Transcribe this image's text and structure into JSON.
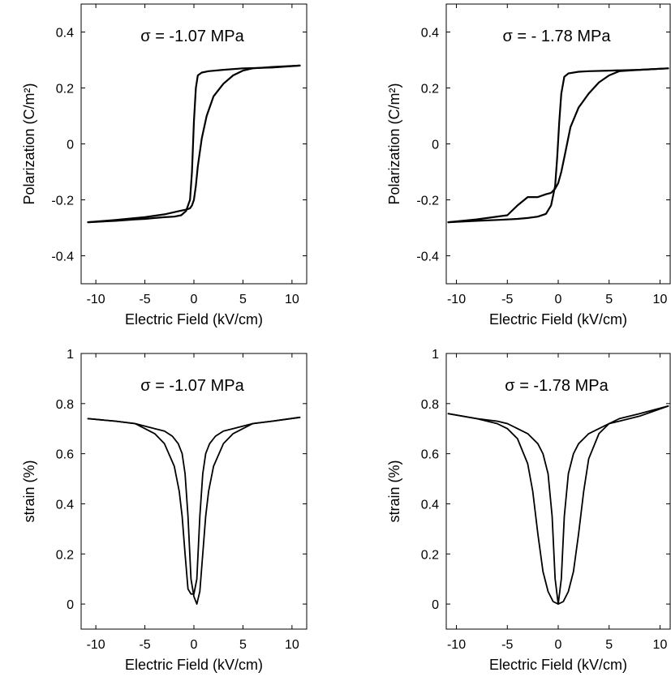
{
  "chart_data": [
    {
      "type": "line",
      "title": "σ = -1.07 MPa",
      "xlabel": "Electric Field (kV/cm)",
      "ylabel": "Polarization (C/m²)",
      "xlim": [
        -11.5,
        11.5
      ],
      "ylim": [
        -0.5,
        0.5
      ],
      "xticks": [
        -10,
        -5,
        0,
        5,
        10
      ],
      "yticks": [
        -0.4,
        -0.2,
        0,
        0.2,
        0.4
      ],
      "ytick_labels": [
        "-0.4",
        "-0.2",
        "0",
        "0.2",
        "0.4"
      ],
      "series": [
        {
          "x": [
            -10.8,
            -8,
            -6,
            -5,
            -4,
            -3,
            -2,
            -1.3,
            -0.8,
            -0.4,
            -0.2,
            0,
            0.2,
            0.4,
            0.8,
            1.5,
            3,
            5,
            8,
            10.8
          ],
          "y": [
            -0.28,
            -0.275,
            -0.27,
            -0.268,
            -0.265,
            -0.262,
            -0.26,
            -0.255,
            -0.24,
            -0.2,
            -0.1,
            0.08,
            0.2,
            0.245,
            0.255,
            0.26,
            0.265,
            0.27,
            0.273,
            0.28
          ]
        },
        {
          "x": [
            10.8,
            8,
            6,
            5,
            4,
            3,
            2,
            1.3,
            0.8,
            0.4,
            0.2,
            0,
            -0.2,
            -0.4,
            -0.8,
            -1.5,
            -3,
            -5,
            -8,
            -10.8
          ],
          "y": [
            0.28,
            0.275,
            0.27,
            0.262,
            0.245,
            0.215,
            0.17,
            0.1,
            0.02,
            -0.08,
            -0.15,
            -0.2,
            -0.22,
            -0.23,
            -0.235,
            -0.24,
            -0.252,
            -0.262,
            -0.272,
            -0.28
          ]
        }
      ]
    },
    {
      "type": "line",
      "title": "σ = - 1.78 MPa",
      "xlabel": "Electric Field (kV/cm)",
      "ylabel": "Polarization (C/m²)",
      "xlim": [
        -11,
        11
      ],
      "ylim": [
        -0.5,
        0.5
      ],
      "xticks": [
        -10,
        -5,
        0,
        5,
        10
      ],
      "yticks": [
        -0.4,
        -0.2,
        0,
        0.2,
        0.4
      ],
      "ytick_labels": [
        "-0.4",
        "-0.2",
        "0",
        "0.2",
        "0.4"
      ],
      "series": [
        {
          "x": [
            -10.8,
            -8,
            -6,
            -4,
            -3,
            -2,
            -1.2,
            -0.7,
            -0.3,
            -0.1,
            0.1,
            0.3,
            0.6,
            1,
            2,
            3,
            5,
            8,
            10.8
          ],
          "y": [
            -0.28,
            -0.275,
            -0.272,
            -0.268,
            -0.265,
            -0.26,
            -0.25,
            -0.22,
            -0.15,
            -0.05,
            0.08,
            0.18,
            0.24,
            0.252,
            0.258,
            0.26,
            0.262,
            0.265,
            0.27
          ]
        },
        {
          "x": [
            10.8,
            8,
            6,
            5,
            4,
            3,
            2,
            1.2,
            0.7,
            0.3,
            0,
            -0.3,
            -0.7,
            -1.2,
            -2,
            -3,
            -4,
            -5,
            -8,
            -10.8
          ],
          "y": [
            0.27,
            0.265,
            0.26,
            0.245,
            0.22,
            0.18,
            0.13,
            0.06,
            -0.03,
            -0.1,
            -0.14,
            -0.16,
            -0.175,
            -0.18,
            -0.19,
            -0.19,
            -0.22,
            -0.255,
            -0.27,
            -0.28
          ]
        }
      ]
    },
    {
      "type": "line",
      "title": "σ = -1.07 MPa",
      "xlabel": "Electric Field (kV/cm)",
      "ylabel": "strain (%)",
      "xlim": [
        -11.5,
        11.5
      ],
      "ylim": [
        -0.1,
        1
      ],
      "xticks": [
        -10,
        -5,
        0,
        5,
        10
      ],
      "yticks": [
        0,
        0.2,
        0.4,
        0.6,
        0.8,
        1
      ],
      "ytick_labels": [
        "0",
        "0.2",
        "0.4",
        "0.6",
        "0.8",
        "1"
      ],
      "series": [
        {
          "x": [
            -10.8,
            -8,
            -6,
            -5,
            -4,
            -3,
            -2,
            -1.5,
            -1.2,
            -0.9,
            -0.6,
            -0.3,
            0,
            0.3,
            0.6,
            0.9,
            1.2,
            1.6,
            2.2,
            3,
            4,
            5,
            6,
            8,
            10.8
          ],
          "y": [
            0.74,
            0.73,
            0.72,
            0.7,
            0.68,
            0.64,
            0.55,
            0.45,
            0.35,
            0.2,
            0.06,
            0.04,
            0.04,
            0.1,
            0.35,
            0.52,
            0.6,
            0.64,
            0.67,
            0.69,
            0.7,
            0.71,
            0.72,
            0.73,
            0.745
          ]
        },
        {
          "x": [
            10.8,
            8,
            6,
            5,
            4,
            3,
            2,
            1.5,
            1.2,
            0.9,
            0.6,
            0.3,
            0,
            -0.3,
            -0.6,
            -0.9,
            -1.2,
            -1.6,
            -2.2,
            -3,
            -4,
            -5,
            -6,
            -8,
            -10.8
          ],
          "y": [
            0.745,
            0.73,
            0.72,
            0.7,
            0.68,
            0.64,
            0.55,
            0.45,
            0.35,
            0.2,
            0.05,
            0.0,
            0.03,
            0.1,
            0.35,
            0.52,
            0.6,
            0.64,
            0.67,
            0.69,
            0.7,
            0.71,
            0.72,
            0.73,
            0.74
          ]
        }
      ]
    },
    {
      "type": "line",
      "title": "σ = -1.78 MPa",
      "xlabel": "Electric Field (kV/cm)",
      "ylabel": "strain (%)",
      "xlim": [
        -11,
        11
      ],
      "ylim": [
        -0.1,
        1
      ],
      "xticks": [
        -10,
        -5,
        0,
        5,
        10
      ],
      "yticks": [
        0,
        0.2,
        0.4,
        0.6,
        0.8,
        1
      ],
      "ytick_labels": [
        "0",
        "0.2",
        "0.4",
        "0.6",
        "0.8",
        "1"
      ],
      "series": [
        {
          "x": [
            -10.8,
            -8,
            -6,
            -5,
            -4,
            -3,
            -2.5,
            -2,
            -1.5,
            -1,
            -0.5,
            0,
            0.3,
            0.6,
            1,
            1.5,
            2,
            3,
            4,
            5,
            6,
            8,
            10.8
          ],
          "y": [
            0.76,
            0.74,
            0.72,
            0.7,
            0.66,
            0.56,
            0.45,
            0.28,
            0.13,
            0.05,
            0.01,
            0.0,
            0.1,
            0.35,
            0.52,
            0.6,
            0.64,
            0.68,
            0.7,
            0.72,
            0.73,
            0.75,
            0.79
          ]
        },
        {
          "x": [
            10.8,
            8,
            6,
            5,
            4,
            3,
            2.5,
            2,
            1.5,
            1,
            0.5,
            0,
            -0.3,
            -0.6,
            -1,
            -1.5,
            -2,
            -3,
            -4,
            -5,
            -6,
            -8,
            -10.8
          ],
          "y": [
            0.79,
            0.76,
            0.74,
            0.72,
            0.68,
            0.58,
            0.45,
            0.28,
            0.13,
            0.05,
            0.01,
            0.0,
            0.1,
            0.35,
            0.52,
            0.6,
            0.64,
            0.68,
            0.7,
            0.72,
            0.73,
            0.74,
            0.76
          ]
        }
      ]
    }
  ]
}
